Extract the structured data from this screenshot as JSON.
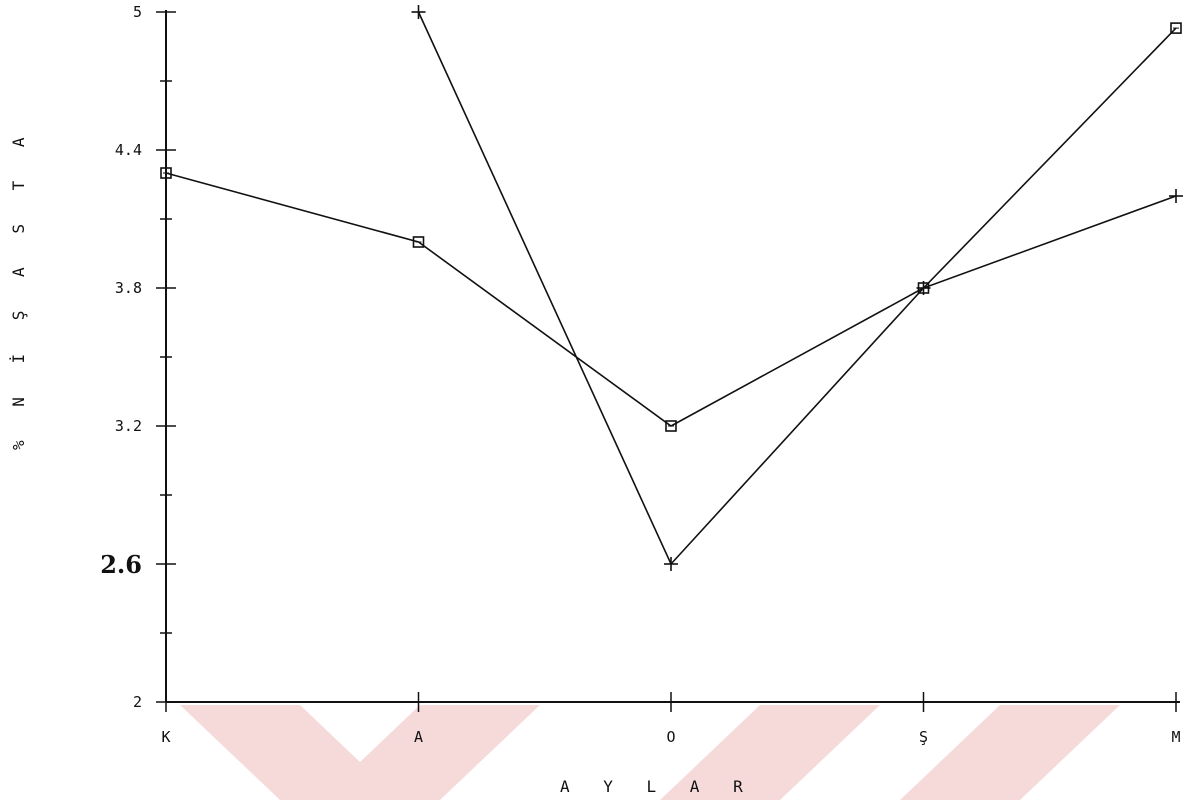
{
  "chart_data": {
    "type": "line",
    "categories": [
      "K",
      "A",
      "O",
      "Ş",
      "M"
    ],
    "xlabel": "A Y L A R",
    "ylabel": "% N İ Ş A S T A",
    "ylim": [
      2,
      5
    ],
    "yticks": [
      "2",
      "2.6",
      "3.2",
      "3.8",
      "4.4",
      "5"
    ],
    "grid": false,
    "series": [
      {
        "marker": "square",
        "values": [
          4.3,
          4.0,
          3.2,
          3.8,
          4.93
        ]
      },
      {
        "marker": "plus",
        "values": [
          null,
          5.0,
          2.6,
          3.8,
          4.2
        ]
      }
    ],
    "colors": {
      "line": "#111111",
      "watermark": "#f3d3d3"
    }
  }
}
